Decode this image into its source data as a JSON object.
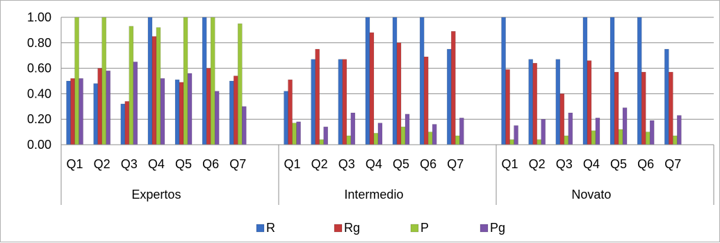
{
  "chart_data": {
    "type": "bar",
    "groups": [
      "Expertos",
      "Intermedio",
      "Novato"
    ],
    "categories": [
      "Q1",
      "Q2",
      "Q3",
      "Q4",
      "Q5",
      "Q6",
      "Q7"
    ],
    "ylim": [
      0,
      1
    ],
    "yticks": [
      "0.00",
      "0.20",
      "0.40",
      "0.60",
      "0.80",
      "1.00"
    ],
    "grid": true,
    "legend_position": "bottom",
    "series": [
      {
        "name": "R",
        "color": "#3a6fc4",
        "values": [
          [
            0.5,
            0.48,
            0.32,
            1.0,
            0.51,
            1.0,
            0.5
          ],
          [
            0.42,
            0.67,
            0.67,
            1.0,
            1.0,
            1.0,
            0.75
          ],
          [
            1.0,
            0.67,
            0.67,
            1.0,
            1.0,
            1.0,
            0.75
          ]
        ]
      },
      {
        "name": "Rg",
        "color": "#c43a3a",
        "values": [
          [
            0.52,
            0.6,
            0.34,
            0.85,
            0.49,
            0.6,
            0.54
          ],
          [
            0.51,
            0.75,
            0.67,
            0.88,
            0.8,
            0.69,
            0.89
          ],
          [
            0.59,
            0.64,
            0.4,
            0.66,
            0.57,
            0.57,
            0.57
          ]
        ]
      },
      {
        "name": "P",
        "color": "#9bc53d",
        "values": [
          [
            1.0,
            1.0,
            0.93,
            0.92,
            1.0,
            1.0,
            0.95
          ],
          [
            0.17,
            0.04,
            0.07,
            0.09,
            0.14,
            0.1,
            0.07
          ],
          [
            0.04,
            0.04,
            0.07,
            0.11,
            0.12,
            0.1,
            0.07
          ]
        ]
      },
      {
        "name": "Pg",
        "color": "#7a55a8",
        "values": [
          [
            0.52,
            0.58,
            0.65,
            0.52,
            0.56,
            0.42,
            0.3
          ],
          [
            0.18,
            0.14,
            0.25,
            0.17,
            0.24,
            0.16,
            0.21
          ],
          [
            0.15,
            0.2,
            0.25,
            0.21,
            0.29,
            0.19,
            0.23
          ]
        ]
      }
    ]
  }
}
